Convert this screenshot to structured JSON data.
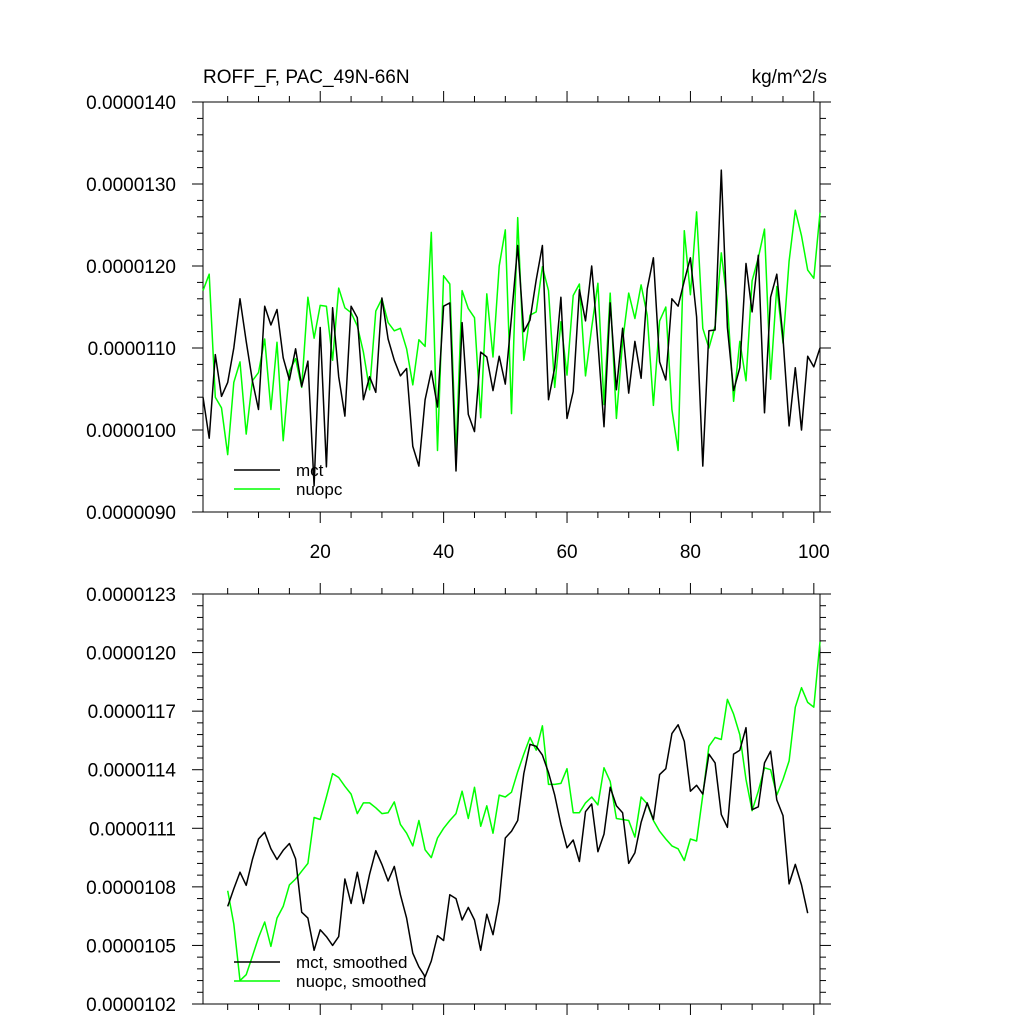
{
  "title_left": "ROFF_F, PAC_49N-66N",
  "title_right": "kg/m^2/s",
  "colors": {
    "mct": "#000000",
    "nuopc": "#00ff00"
  },
  "chart_data": [
    {
      "type": "line",
      "title": "ROFF_F, PAC_49N-66N",
      "units": "kg/m^2/s",
      "xlim": [
        1,
        101
      ],
      "ylim": [
        9e-06,
        1.4e-05
      ],
      "xticks": [
        20,
        40,
        60,
        80,
        100
      ],
      "xtick_labels": [
        "20",
        "40",
        "60",
        "80",
        "100"
      ],
      "yticks": [
        9e-06,
        1e-05,
        1.1e-05,
        1.2e-05,
        1.3e-05,
        1.4e-05
      ],
      "ytick_labels": [
        "0.0000090",
        "0.0000100",
        "0.0000110",
        "0.0000120",
        "0.0000130",
        "0.0000140"
      ],
      "legend_position": "bottom-left",
      "grid": false,
      "series": [
        {
          "name": "mct",
          "color": "#000000",
          "x_start": 1,
          "values": [
            1.04e-05,
            9.9e-06,
            1.092e-05,
            1.041e-05,
            1.058e-05,
            1.1e-05,
            1.16e-05,
            1.108e-05,
            1.06e-05,
            1.025e-05,
            1.151e-05,
            1.128e-05,
            1.147e-05,
            1.088e-05,
            1.061e-05,
            1.099e-05,
            1.053e-05,
            1.084e-05,
            9.32e-06,
            1.125e-05,
            9.55e-06,
            1.149e-05,
            1.065e-05,
            1.017e-05,
            1.151e-05,
            1.137e-05,
            1.037e-05,
            1.065e-05,
            1.046e-05,
            1.161e-05,
            1.111e-05,
            1.085e-05,
            1.066e-05,
            1.075e-05,
            9.8e-06,
            9.56e-06,
            1.037e-05,
            1.072e-05,
            1.028e-05,
            1.151e-05,
            1.155e-05,
            9.5e-06,
            1.131e-05,
            1.019e-05,
            9.98e-06,
            1.095e-05,
            1.089e-05,
            1.048e-05,
            1.09e-05,
            1.056e-05,
            1.138e-05,
            1.225e-05,
            1.12e-05,
            1.134e-05,
            1.183e-05,
            1.225e-05,
            1.037e-05,
            1.076e-05,
            1.162e-05,
            1.014e-05,
            1.047e-05,
            1.171e-05,
            1.133e-05,
            1.2e-05,
            1.107e-05,
            1.004e-05,
            1.155e-05,
            1.049e-05,
            1.124e-05,
            1.045e-05,
            1.108e-05,
            1.063e-05,
            1.172e-05,
            1.21e-05,
            1.083e-05,
            1.061e-05,
            1.16e-05,
            1.151e-05,
            1.182e-05,
            1.21e-05,
            1.138e-05,
            9.56e-06,
            1.121e-05,
            1.122e-05,
            1.317e-05,
            1.125e-05,
            1.048e-05,
            1.076e-05,
            1.203e-05,
            1.144e-05,
            1.213e-05,
            1.021e-05,
            1.162e-05,
            1.19e-05,
            1.112e-05,
            1.005e-05,
            1.076e-05,
            1e-05,
            1.09e-05,
            1.077e-05,
            1.1e-05
          ]
        },
        {
          "name": "nuopc",
          "color": "#00ff00",
          "x_start": 1,
          "values": [
            1.17e-05,
            1.19e-05,
            1.04e-05,
            1.027e-05,
            9.7e-06,
            1.058e-05,
            1.083e-05,
            9.95e-06,
            1.06e-05,
            1.07e-05,
            1.111e-05,
            1.025e-05,
            1.107e-05,
            9.87e-06,
            1.072e-05,
            1.087e-05,
            1.052e-05,
            1.162e-05,
            1.112e-05,
            1.152e-05,
            1.151e-05,
            1.085e-05,
            1.173e-05,
            1.149e-05,
            1.143e-05,
            1.127e-05,
            1.095e-05,
            1.049e-05,
            1.145e-05,
            1.16e-05,
            1.131e-05,
            1.121e-05,
            1.124e-05,
            1.099e-05,
            1.055e-05,
            1.11e-05,
            1.102e-05,
            1.241e-05,
            9.75e-06,
            1.188e-05,
            1.178e-05,
            9.7e-06,
            1.17e-05,
            1.148e-05,
            1.137e-05,
            1.015e-05,
            1.166e-05,
            1.089e-05,
            1.2e-05,
            1.244e-05,
            1.02e-05,
            1.259e-05,
            1.085e-05,
            1.14e-05,
            1.144e-05,
            1.199e-05,
            1.17e-05,
            1.052e-05,
            1.132e-05,
            1.067e-05,
            1.164e-05,
            1.178e-05,
            1.066e-05,
            1.125e-05,
            1.179e-05,
            1.031e-05,
            1.167e-05,
            1.014e-05,
            1.108e-05,
            1.167e-05,
            1.136e-05,
            1.177e-05,
            1.14e-05,
            1.03e-05,
            1.133e-05,
            1.15e-05,
            1.025e-05,
            9.75e-06,
            1.243e-05,
            1.165e-05,
            1.266e-05,
            1.124e-05,
            1.1e-05,
            1.127e-05,
            1.216e-05,
            1.155e-05,
            1.035e-05,
            1.108e-05,
            1.06e-05,
            1.182e-05,
            1.21e-05,
            1.245e-05,
            1.062e-05,
            1.175e-05,
            1.106e-05,
            1.206e-05,
            1.268e-05,
            1.237e-05,
            1.195e-05,
            1.185e-05,
            1.265e-05
          ]
        }
      ]
    },
    {
      "type": "line",
      "xlim": [
        1,
        101
      ],
      "ylim": [
        1.02e-05,
        1.23e-05
      ],
      "xticks": [
        20,
        40,
        60,
        80,
        100
      ],
      "xtick_labels": [],
      "yticks": [
        1.02e-05,
        1.05e-05,
        1.08e-05,
        1.11e-05,
        1.14e-05,
        1.17e-05,
        1.2e-05,
        1.23e-05
      ],
      "ytick_labels": [
        "0.0000102",
        "0.0000105",
        "0.0000108",
        "0.0000111",
        "0.0000114",
        "0.0000117",
        "0.0000120",
        "0.0000123"
      ],
      "legend_position": "bottom-left",
      "grid": false,
      "series": [
        {
          "name": "mct, smoothed",
          "color": "#000000",
          "x_start": 5,
          "values": [
            1.07e-05,
            1.079e-05,
            1.0875e-05,
            1.0808e-05,
            1.094e-05,
            1.1045e-05,
            1.108e-05,
            1.0995e-05,
            1.094e-05,
            1.0987e-05,
            1.1022e-05,
            1.0943e-05,
            1.067e-05,
            1.064e-05,
            1.0475e-05,
            1.058e-05,
            1.0545e-05,
            1.05e-05,
            1.0545e-05,
            1.084e-05,
            1.0715e-05,
            1.0875e-05,
            1.0715e-05,
            1.0865e-05,
            1.0985e-05,
            1.0915e-05,
            1.083e-05,
            1.0905e-05,
            1.076e-05,
            1.064e-05,
            1.046e-05,
            1.039e-05,
            1.034e-05,
            1.042e-05,
            1.055e-05,
            1.0525e-05,
            1.076e-05,
            1.074e-05,
            1.063e-05,
            1.0695e-05,
            1.063e-05,
            1.0475e-05,
            1.066e-05,
            1.0555e-05,
            1.0725e-05,
            1.105e-05,
            1.1085e-05,
            1.114e-05,
            1.138e-05,
            1.153e-05,
            1.152e-05,
            1.1475e-05,
            1.1385e-05,
            1.127e-05,
            1.112e-05,
            1.1e-05,
            1.104e-05,
            1.093e-05,
            1.1185e-05,
            1.1225e-05,
            1.098e-05,
            1.107e-05,
            1.131e-05,
            1.1215e-05,
            1.118e-05,
            1.092e-05,
            1.0975e-05,
            1.113e-05,
            1.123e-05,
            1.1145e-05,
            1.1375e-05,
            1.1405e-05,
            1.1585e-05,
            1.163e-05,
            1.1545e-05,
            1.129e-05,
            1.132e-05,
            1.1275e-05,
            1.148e-05,
            1.1435e-05,
            1.117e-05,
            1.1105e-05,
            1.148e-05,
            1.15e-05,
            1.1615e-05,
            1.1195e-05,
            1.121e-05,
            1.1435e-05,
            1.1495e-05,
            1.1245e-05,
            1.1165e-05,
            1.0815e-05,
            1.0915e-05,
            1.081e-05,
            1.0665e-05
          ]
        },
        {
          "name": "nuopc, smoothed",
          "color": "#00ff00",
          "x_start": 5,
          "values": [
            1.078e-05,
            1.061e-05,
            1.032e-05,
            1.035e-05,
            1.0445e-05,
            1.054e-05,
            1.062e-05,
            1.0495e-05,
            1.064e-05,
            1.07e-05,
            1.081e-05,
            1.084e-05,
            1.088e-05,
            1.092e-05,
            1.1155e-05,
            1.1145e-05,
            1.126e-05,
            1.138e-05,
            1.136e-05,
            1.1315e-05,
            1.1275e-05,
            1.1175e-05,
            1.123e-05,
            1.123e-05,
            1.1205e-05,
            1.1175e-05,
            1.118e-05,
            1.1235e-05,
            1.112e-05,
            1.1075e-05,
            1.101e-05,
            1.114e-05,
            1.099e-05,
            1.095e-05,
            1.105e-05,
            1.11e-05,
            1.114e-05,
            1.1175e-05,
            1.129e-05,
            1.115e-05,
            1.131e-05,
            1.111e-05,
            1.1215e-05,
            1.1075e-05,
            1.127e-05,
            1.126e-05,
            1.1285e-05,
            1.139e-05,
            1.148e-05,
            1.1565e-05,
            1.15e-05,
            1.1625e-05,
            1.1325e-05,
            1.1325e-05,
            1.133e-05,
            1.1405e-05,
            1.118e-05,
            1.118e-05,
            1.123e-05,
            1.126e-05,
            1.122e-05,
            1.141e-05,
            1.134e-05,
            1.115e-05,
            1.1145e-05,
            1.114e-05,
            1.1055e-05,
            1.126e-05,
            1.1225e-05,
            1.114e-05,
            1.1085e-05,
            1.1045e-05,
            1.101e-05,
            1.0995e-05,
            1.0935e-05,
            1.1045e-05,
            1.1035e-05,
            1.127e-05,
            1.152e-05,
            1.1565e-05,
            1.1555e-05,
            1.176e-05,
            1.1685e-05,
            1.158e-05,
            1.135e-05,
            1.119e-05,
            1.129e-05,
            1.141e-05,
            1.14e-05,
            1.127e-05,
            1.135e-05,
            1.1445e-05,
            1.172e-05,
            1.182e-05,
            1.1745e-05,
            1.172e-05,
            1.2055e-05
          ]
        }
      ]
    }
  ]
}
